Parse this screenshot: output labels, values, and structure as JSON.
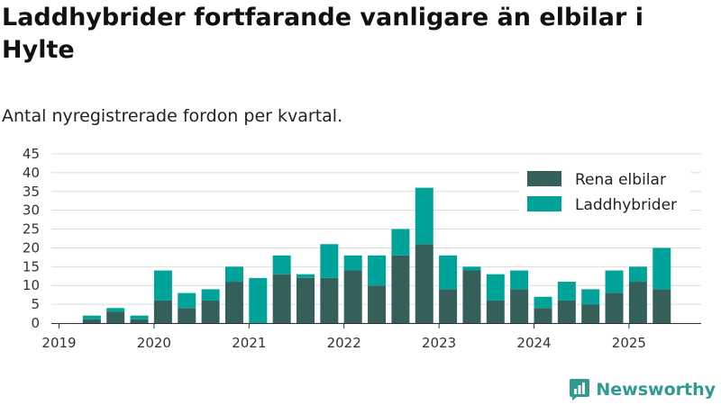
{
  "header": {
    "title": "Laddhybrider fortfarande vanligare än elbilar i Hylte",
    "subtitle": "Antal nyregistrerade fordon per kvartal."
  },
  "brand": {
    "name": "Newsworthy",
    "icon": "newsworthy-logo-icon",
    "color": "#2f9a8f"
  },
  "chart_data": {
    "type": "bar",
    "stacked": true,
    "categories": [
      "2019 Q1",
      "2019 Q2",
      "2019 Q3",
      "2019 Q4",
      "2020 Q1",
      "2020 Q2",
      "2020 Q3",
      "2020 Q4",
      "2021 Q1",
      "2021 Q2",
      "2021 Q3",
      "2021 Q4",
      "2022 Q1",
      "2022 Q2",
      "2022 Q3",
      "2022 Q4",
      "2023 Q1",
      "2023 Q2",
      "2023 Q3",
      "2023 Q4",
      "2024 Q1",
      "2024 Q2",
      "2024 Q3",
      "2024 Q4",
      "2025 Q1",
      "2025 Q2"
    ],
    "series": [
      {
        "name": "Rena elbilar",
        "color": "#35605a",
        "values": [
          0,
          1,
          3,
          1,
          6,
          4,
          6,
          11,
          0,
          13,
          12,
          12,
          14,
          10,
          18,
          21,
          9,
          14,
          6,
          9,
          4,
          6,
          5,
          8,
          11,
          9
        ]
      },
      {
        "name": "Laddhybrider",
        "color": "#00a39a",
        "values": [
          0,
          1,
          1,
          1,
          8,
          4,
          3,
          4,
          12,
          5,
          1,
          9,
          4,
          8,
          7,
          15,
          9,
          1,
          7,
          5,
          3,
          5,
          4,
          6,
          4,
          11
        ]
      }
    ],
    "x_tick_labels": [
      "2019",
      "2020",
      "2021",
      "2022",
      "2023",
      "2024",
      "2025"
    ],
    "y_ticks": [
      0,
      5,
      10,
      15,
      20,
      25,
      30,
      35,
      40,
      45
    ],
    "ylim": [
      0,
      45
    ],
    "grid": true,
    "legend_position": "top-right"
  }
}
